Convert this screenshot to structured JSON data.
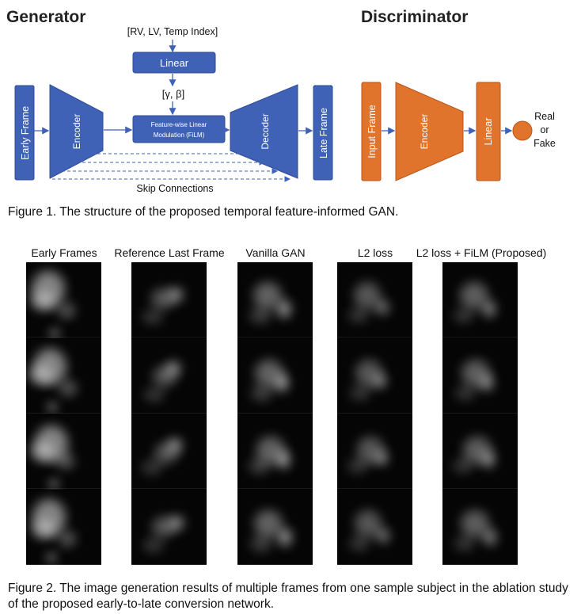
{
  "figure1": {
    "generator_title": "Generator",
    "discriminator_title": "Discriminator",
    "cond_input": "[RV, LV, Temp Index]",
    "linear_label": "Linear",
    "params_label": "[γ, β]",
    "film_line1": "Feature-wise Linear",
    "film_line2": "Modulation (FiLM)",
    "early_frame": "Early Frame",
    "encoder_label": "Encoder",
    "decoder_label": "Decoder",
    "late_frame": "Late Frame",
    "skip_label": "Skip Connections",
    "disc_input": "Input Frame",
    "disc_encoder": "Encoder",
    "disc_linear": "Linear",
    "output_line1": "Real",
    "output_line2": "or",
    "output_line3": "Fake",
    "colors": {
      "generator": "#3f62b7",
      "discriminator": "#e0742c",
      "generator_edge": "#2f4d96",
      "discriminator_edge": "#b8561a"
    },
    "caption": "Figure 1. The structure of the proposed temporal feature-informed GAN."
  },
  "figure2": {
    "columns": [
      "Early Frames",
      "Reference Last Frame",
      "Vanilla GAN",
      "L2 loss",
      "L2 loss + FiLM (Proposed)"
    ],
    "rows": 4,
    "caption": "Figure 2. The image generation results of multiple frames from one sample subject in the ablation study of the proposed early-to-late conversion network."
  }
}
